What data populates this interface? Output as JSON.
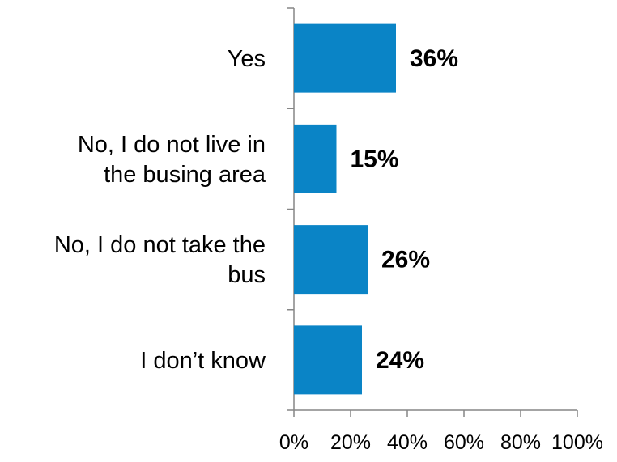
{
  "chart_data": {
    "type": "bar",
    "orientation": "horizontal",
    "categories": [
      [
        "Yes"
      ],
      [
        "No, I do not live in",
        "the busing area"
      ],
      [
        "No, I do not take the",
        "bus"
      ],
      [
        "I don’t know"
      ]
    ],
    "values": [
      36,
      15,
      26,
      24
    ],
    "data_labels": [
      "36%",
      "15%",
      "26%",
      "24%"
    ],
    "xlim": [
      0,
      100
    ],
    "x_ticks": [
      0,
      20,
      40,
      60,
      80,
      100
    ],
    "x_tick_labels": [
      "0%",
      "20%",
      "40%",
      "60%",
      "80%",
      "100%"
    ],
    "bar_color": "#0A84C6",
    "grid": false,
    "legend": "none"
  }
}
